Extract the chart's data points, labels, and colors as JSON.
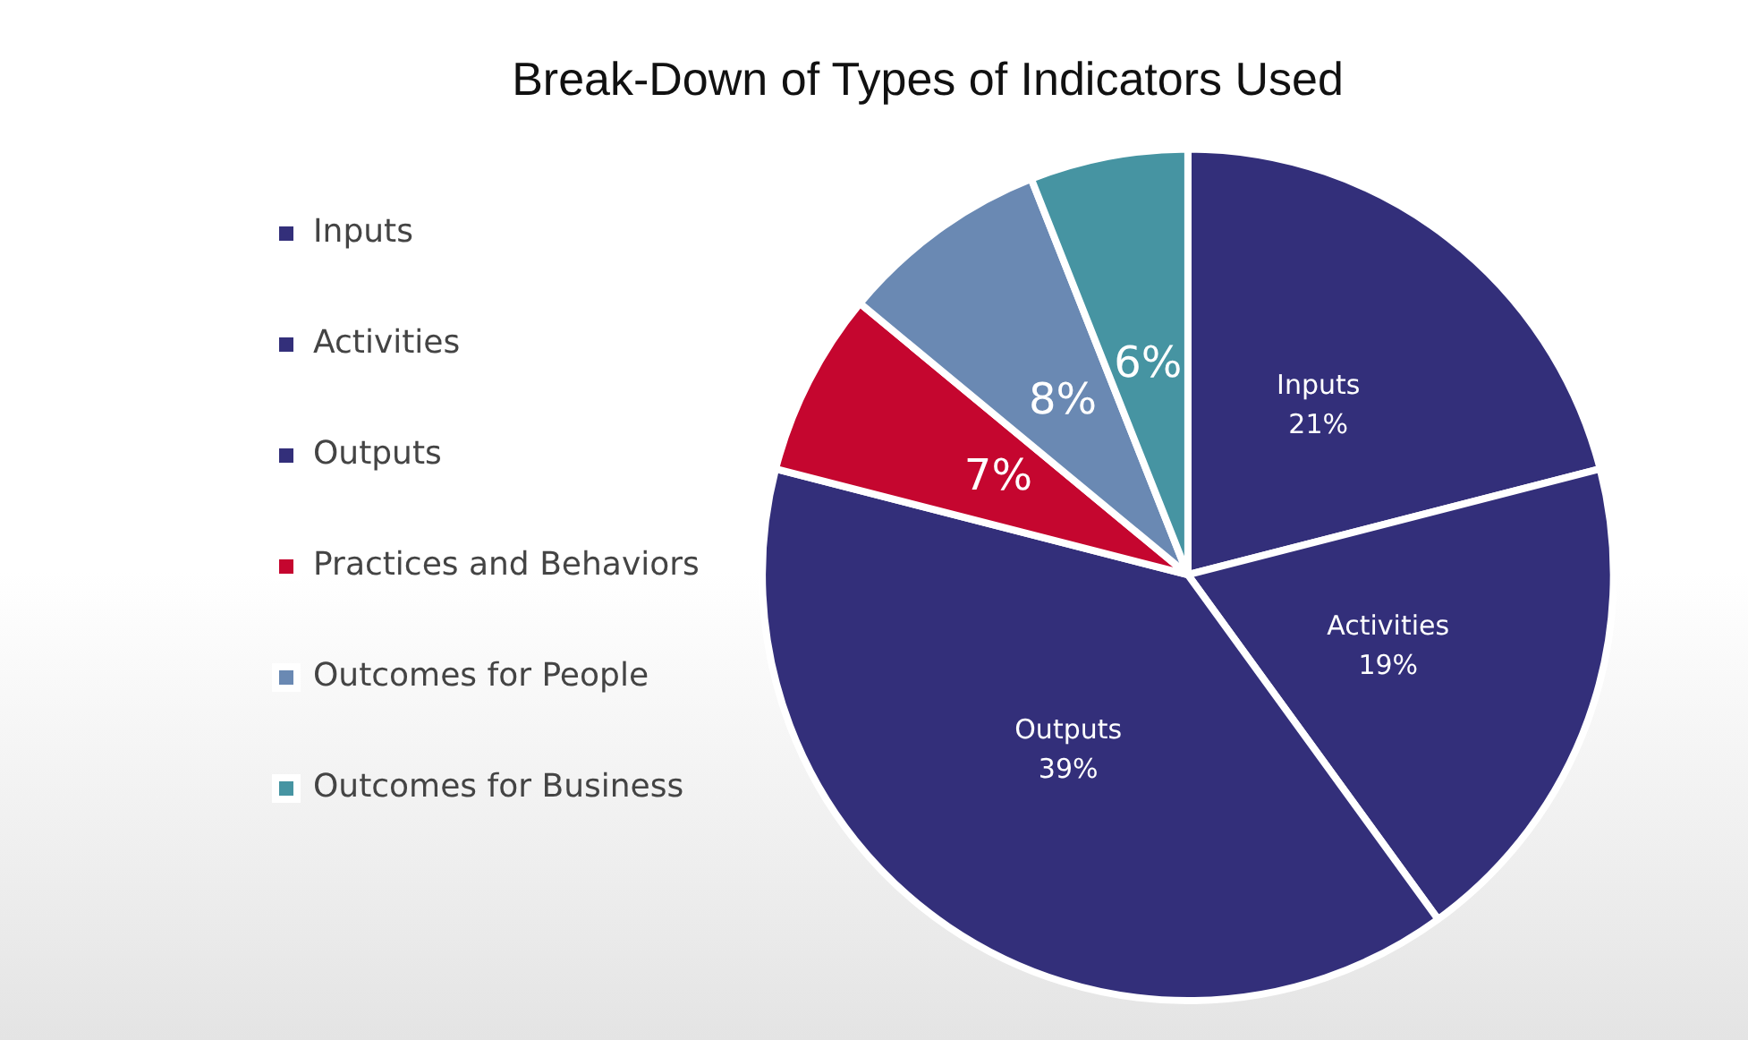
{
  "chart_data": {
    "type": "pie",
    "title": "Break-Down of Types of Indicators Used",
    "categories": [
      "Inputs",
      "Activities",
      "Outputs",
      "Practices and Behaviors",
      "Outcomes for People",
      "Outcomes for Business"
    ],
    "values": [
      21,
      19,
      39,
      7,
      8,
      6
    ],
    "colors": [
      "#332f7a",
      "#332f7a",
      "#332f7a",
      "#c5062f",
      "#6a89b3",
      "#4694a2"
    ],
    "value_labels": [
      "Inputs\n21%",
      "Activities\n19%",
      "Outputs\n39%",
      "7%",
      "8%",
      "6%"
    ],
    "legend": "left"
  }
}
